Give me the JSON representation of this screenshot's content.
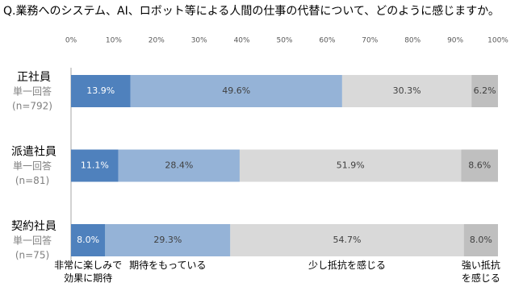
{
  "chart_data": {
    "type": "stacked-bar-horizontal",
    "title": "Q.業務へのシステム、AI、ロボット等による人間の仕事の代替について、どのように感じますか。",
    "categories": [
      "正社員",
      "派遣社員",
      "契約社員"
    ],
    "category_details": [
      [
        "単一回答",
        "(n=792)"
      ],
      [
        "単一回答",
        "(n=81)"
      ],
      [
        "単一回答",
        "(n=75)"
      ]
    ],
    "series": [
      {
        "name": "非常に楽しみで\n効果に期待",
        "color": "#4f81bd",
        "values": [
          13.9,
          11.1,
          8.0
        ],
        "value_labels": [
          "13.9%",
          "11.1%",
          "8.0%"
        ]
      },
      {
        "name": "期待をもっている",
        "color": "#95b3d7",
        "values": [
          49.6,
          28.4,
          29.3
        ],
        "value_labels": [
          "49.6%",
          "28.4%",
          "29.3%"
        ]
      },
      {
        "name": "少し抵抗を感じる",
        "color": "#d9d9d9",
        "values": [
          30.3,
          51.9,
          54.7
        ],
        "value_labels": [
          "30.3%",
          "51.9%",
          "54.7%"
        ]
      },
      {
        "name": "強い抵抗\nを感じる",
        "color": "#bfbfbf",
        "values": [
          6.2,
          8.6,
          8.0
        ],
        "value_labels": [
          "6.2%",
          "8.6%",
          "8.0%"
        ]
      }
    ],
    "xlim": [
      0,
      100
    ],
    "xticks": [
      {
        "value": 0,
        "label": "0%"
      },
      {
        "value": 10,
        "label": "10%"
      },
      {
        "value": 20,
        "label": "20%"
      },
      {
        "value": 30,
        "label": "30%"
      },
      {
        "value": 40,
        "label": "40%"
      },
      {
        "value": 50,
        "label": "50%"
      },
      {
        "value": 60,
        "label": "60%"
      },
      {
        "value": 70,
        "label": "70%"
      },
      {
        "value": 80,
        "label": "80%"
      },
      {
        "value": 90,
        "label": "90%"
      },
      {
        "value": 100,
        "label": "100%"
      }
    ]
  }
}
